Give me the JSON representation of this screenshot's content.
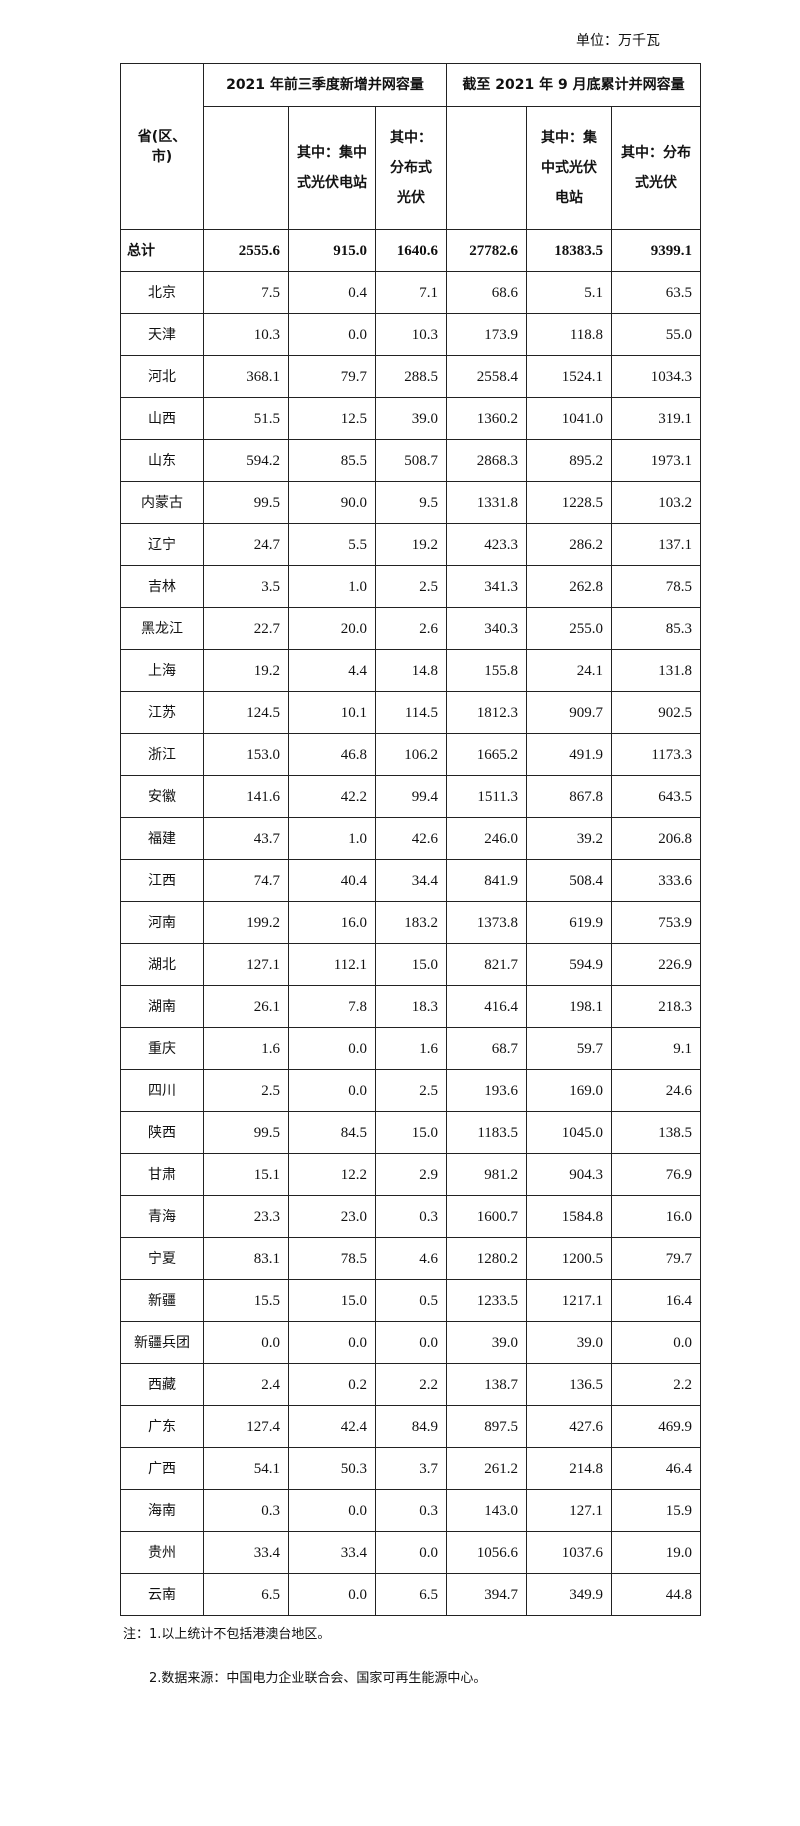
{
  "unit": "单位：万千瓦",
  "header": {
    "province": "省(区、市)",
    "group1": "2021 年前三季度新增并网容量",
    "group2": "截至 2021 年 9 月底累计并网容量",
    "g1_total": "",
    "g1_central": "其中：集中式光伏电站",
    "g1_distributed": "其中：分布式光伏",
    "g2_total": "",
    "g2_central": "其中：集中式光伏电站",
    "g2_distributed": "其中：分布式光伏"
  },
  "rows": [
    [
      "总计",
      "2555.6",
      "915.0",
      "1640.6",
      "27782.6",
      "18383.5",
      "9399.1"
    ],
    [
      "北京",
      "7.5",
      "0.4",
      "7.1",
      "68.6",
      "5.1",
      "63.5"
    ],
    [
      "天津",
      "10.3",
      "0.0",
      "10.3",
      "173.9",
      "118.8",
      "55.0"
    ],
    [
      "河北",
      "368.1",
      "79.7",
      "288.5",
      "2558.4",
      "1524.1",
      "1034.3"
    ],
    [
      "山西",
      "51.5",
      "12.5",
      "39.0",
      "1360.2",
      "1041.0",
      "319.1"
    ],
    [
      "山东",
      "594.2",
      "85.5",
      "508.7",
      "2868.3",
      "895.2",
      "1973.1"
    ],
    [
      "内蒙古",
      "99.5",
      "90.0",
      "9.5",
      "1331.8",
      "1228.5",
      "103.2"
    ],
    [
      "辽宁",
      "24.7",
      "5.5",
      "19.2",
      "423.3",
      "286.2",
      "137.1"
    ],
    [
      "吉林",
      "3.5",
      "1.0",
      "2.5",
      "341.3",
      "262.8",
      "78.5"
    ],
    [
      "黑龙江",
      "22.7",
      "20.0",
      "2.6",
      "340.3",
      "255.0",
      "85.3"
    ],
    [
      "上海",
      "19.2",
      "4.4",
      "14.8",
      "155.8",
      "24.1",
      "131.8"
    ],
    [
      "江苏",
      "124.5",
      "10.1",
      "114.5",
      "1812.3",
      "909.7",
      "902.5"
    ],
    [
      "浙江",
      "153.0",
      "46.8",
      "106.2",
      "1665.2",
      "491.9",
      "1173.3"
    ],
    [
      "安徽",
      "141.6",
      "42.2",
      "99.4",
      "1511.3",
      "867.8",
      "643.5"
    ],
    [
      "福建",
      "43.7",
      "1.0",
      "42.6",
      "246.0",
      "39.2",
      "206.8"
    ],
    [
      "江西",
      "74.7",
      "40.4",
      "34.4",
      "841.9",
      "508.4",
      "333.6"
    ],
    [
      "河南",
      "199.2",
      "16.0",
      "183.2",
      "1373.8",
      "619.9",
      "753.9"
    ],
    [
      "湖北",
      "127.1",
      "112.1",
      "15.0",
      "821.7",
      "594.9",
      "226.9"
    ],
    [
      "湖南",
      "26.1",
      "7.8",
      "18.3",
      "416.4",
      "198.1",
      "218.3"
    ],
    [
      "重庆",
      "1.6",
      "0.0",
      "1.6",
      "68.7",
      "59.7",
      "9.1"
    ],
    [
      "四川",
      "2.5",
      "0.0",
      "2.5",
      "193.6",
      "169.0",
      "24.6"
    ],
    [
      "陕西",
      "99.5",
      "84.5",
      "15.0",
      "1183.5",
      "1045.0",
      "138.5"
    ],
    [
      "甘肃",
      "15.1",
      "12.2",
      "2.9",
      "981.2",
      "904.3",
      "76.9"
    ],
    [
      "青海",
      "23.3",
      "23.0",
      "0.3",
      "1600.7",
      "1584.8",
      "16.0"
    ],
    [
      "宁夏",
      "83.1",
      "78.5",
      "4.6",
      "1280.2",
      "1200.5",
      "79.7"
    ],
    [
      "新疆",
      "15.5",
      "15.0",
      "0.5",
      "1233.5",
      "1217.1",
      "16.4"
    ],
    [
      "新疆兵团",
      "0.0",
      "0.0",
      "0.0",
      "39.0",
      "39.0",
      "0.0"
    ],
    [
      "西藏",
      "2.4",
      "0.2",
      "2.2",
      "138.7",
      "136.5",
      "2.2"
    ],
    [
      "广东",
      "127.4",
      "42.4",
      "84.9",
      "897.5",
      "427.6",
      "469.9"
    ],
    [
      "广西",
      "54.1",
      "50.3",
      "3.7",
      "261.2",
      "214.8",
      "46.4"
    ],
    [
      "海南",
      "0.3",
      "0.0",
      "0.3",
      "143.0",
      "127.1",
      "15.9"
    ],
    [
      "贵州",
      "33.4",
      "33.4",
      "0.0",
      "1056.6",
      "1037.6",
      "19.0"
    ],
    [
      "云南",
      "6.5",
      "0.0",
      "6.5",
      "394.7",
      "349.9",
      "44.8"
    ]
  ],
  "notes": {
    "note1": "注：1.以上统计不包括港澳台地区。",
    "note2": "2.数据来源：中国电力企业联合会、国家可再生能源中心。"
  }
}
